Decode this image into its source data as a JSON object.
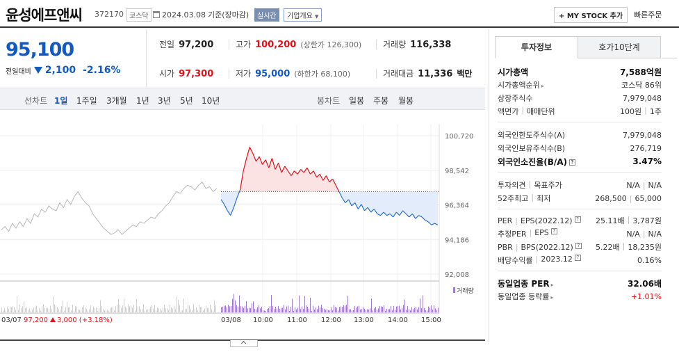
{
  "header": {
    "name": "윤성에프앤씨",
    "code": "372170",
    "market": "코스닥",
    "date": "2024.03.08",
    "basis": "기준(장마감)",
    "realtime": "실시간",
    "company_overview": "기업개요",
    "mystock": "+ MY STOCK 추가",
    "quick_order": "빠른주문"
  },
  "price": {
    "current": "95,100",
    "change_label": "전일대비",
    "change_amount": "2,100",
    "change_pct": "-2.16%"
  },
  "summary": {
    "prev_label": "전일",
    "prev": "97,200",
    "high_label": "고가",
    "high": "100,200",
    "high_limit": "(상한가 126,300)",
    "volume_label": "거래량",
    "volume": "116,338",
    "open_label": "시가",
    "open": "97,300",
    "low_label": "저가",
    "low": "95,000",
    "low_limit": "(하한가 68,100)",
    "amount_label": "거래대금",
    "amount": "11,336",
    "amount_unit": "백만"
  },
  "chart_tabs": {
    "line_label": "선차트",
    "line_items": [
      "1일",
      "1주일",
      "3개월",
      "1년",
      "3년",
      "5년",
      "10년"
    ],
    "candle_label": "봉차트",
    "candle_items": [
      "일봉",
      "주봉",
      "월봉"
    ]
  },
  "chart_data": {
    "type": "line",
    "y_ticks": [
      "100,720",
      "98,542",
      "96,364",
      "94,186",
      "92,008"
    ],
    "ylim": [
      92008,
      100720
    ],
    "base_price": 97200,
    "prev_day_label": "03/07",
    "prev_day_close": "97,200",
    "prev_day_change": "3,000 (+3.18%)",
    "x_ticks": [
      "03/08",
      "10:00",
      "11:00",
      "12:00",
      "13:00",
      "14:00",
      "15:00"
    ],
    "volume_legend": "거래량",
    "prev_series": [
      94800,
      95000,
      94700,
      95200,
      94900,
      95300,
      95000,
      95500,
      95200,
      95800,
      95600,
      96100,
      95900,
      96300,
      96100,
      96000,
      96500,
      96200,
      96700,
      96400,
      96900,
      97200,
      96800,
      96500,
      96300,
      95800,
      95500,
      95200,
      94900,
      94700,
      94500,
      94600,
      94800,
      94500,
      94700,
      94900,
      95100,
      95000,
      95300,
      95200,
      95400,
      95600,
      95500,
      95800,
      96000,
      96300,
      96500,
      96900,
      97200,
      97100,
      97400,
      97600,
      97500,
      97300,
      97600,
      97800,
      97400,
      97500,
      97200,
      97400
    ],
    "today_series": [
      96700,
      96400,
      96000,
      95700,
      96200,
      96800,
      97300,
      98500,
      99300,
      100000,
      99600,
      99100,
      99400,
      98900,
      99200,
      98700,
      99300,
      98600,
      99000,
      98400,
      98800,
      98500,
      98200,
      98500,
      98300,
      98600,
      98400,
      98700,
      98300,
      98500,
      98100,
      98300,
      97900,
      98200,
      97800,
      98000,
      97600,
      97200,
      96800,
      96500,
      96700,
      96300,
      96500,
      96100,
      96400,
      96000,
      96200,
      95900,
      96100,
      95800,
      95700,
      95900,
      95700,
      95800,
      95600,
      95900,
      95700,
      96000,
      95800,
      95600,
      95800,
      95500,
      95700,
      95600,
      95400,
      95300,
      95100,
      95200,
      95100
    ]
  },
  "right_panel": {
    "tab_info": "투자정보",
    "tab_hoga": "호가10단계",
    "market_cap_label": "시가총액",
    "market_cap": "7,588억원",
    "market_cap_rank_label": "시가총액순위",
    "market_cap_rank": "코스닥 86위",
    "shares_label": "상장주식수",
    "shares": "7,979,048",
    "par_label": "액면가",
    "unit_label": "매매단위",
    "par": "100원",
    "unit": "1주",
    "foreign_limit_label": "외국인한도주식수(A)",
    "foreign_limit": "7,979,048",
    "foreign_hold_label": "외국인보유주식수(B)",
    "foreign_hold": "276,719",
    "foreign_ratio_label": "외국인소진율(B/A)",
    "foreign_ratio": "3.47%",
    "opinion_label": "투자의견",
    "target_label": "목표주가",
    "opinion": "N/A",
    "target": "N/A",
    "w52_high_label": "52주최고",
    "w52_low_label": "최저",
    "w52_high": "268,500",
    "w52_low": "65,000",
    "per_label": "PER",
    "eps_label": "EPS",
    "per_date": "(2022.12)",
    "per": "25.11배",
    "eps": "3,787원",
    "est_per_label": "추정PER",
    "est_eps_label": "EPS",
    "est_per": "N/A",
    "est_eps": "N/A",
    "pbr_label": "PBR",
    "bps_label": "BPS",
    "pbr_date": "(2022.12)",
    "pbr": "5.22배",
    "bps": "18,235원",
    "div_label": "배당수익률",
    "div_date": "2023.12",
    "div": "0.16%",
    "sector_per_label": "동일업종 PER",
    "sector_per": "32.06배",
    "sector_chg_label": "동일업종 등락률",
    "sector_chg": "+1.01%"
  }
}
